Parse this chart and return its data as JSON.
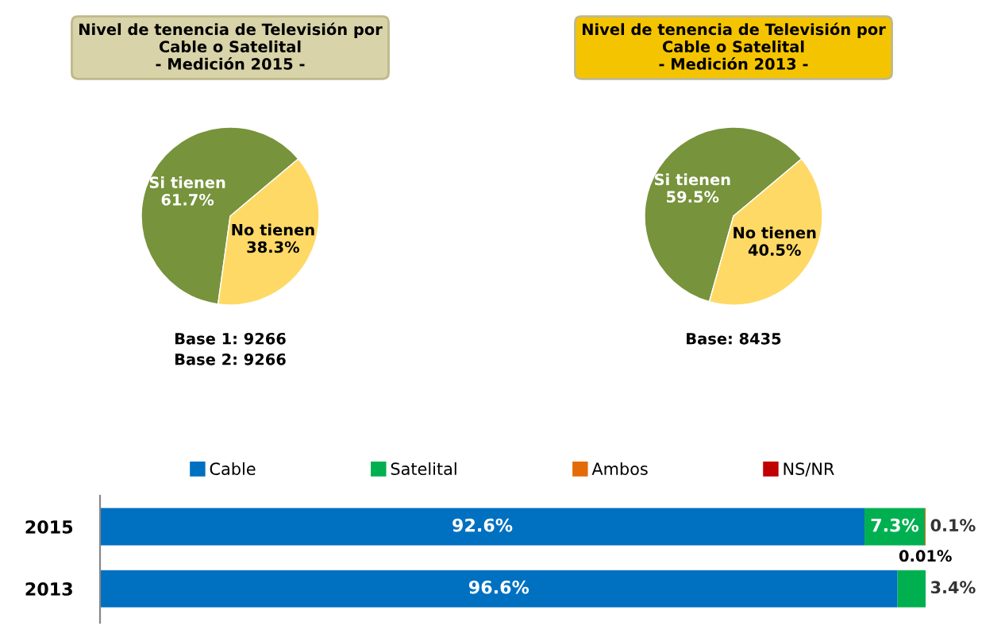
{
  "chart_data": [
    {
      "type": "pie",
      "title": "Nivel de tenencia de Televisión por\nCable o Satelital\n- Medición 2015 -",
      "categories": [
        "Si tienen",
        "No tienen"
      ],
      "values": [
        61.7,
        38.3
      ],
      "value_labels": [
        "61.7%",
        "38.3%"
      ],
      "colors": [
        "#77933c",
        "#ffd966"
      ],
      "annotations": [
        "Base 1: 9266",
        "Base 2: 9266"
      ]
    },
    {
      "type": "pie",
      "title": "Nivel de tenencia de Televisión por\nCable o Satelital\n- Medición 2013 -",
      "categories": [
        "Si tienen",
        "No tienen"
      ],
      "values": [
        59.5,
        40.5
      ],
      "value_labels": [
        "59.5%",
        "40.5%"
      ],
      "colors": [
        "#77933c",
        "#ffd966"
      ],
      "annotations": [
        "Base: 8435"
      ]
    },
    {
      "type": "bar",
      "orientation": "horizontal",
      "stacked": true,
      "categories": [
        "2015",
        "2013"
      ],
      "xlim": [
        0,
        100
      ],
      "tick_labels": "y",
      "legend": "top",
      "data_labels": true,
      "series": [
        {
          "name": "Cable",
          "color": "#0070c0",
          "values": [
            92.6,
            96.6
          ],
          "value_labels": [
            "92.6%",
            "96.6%"
          ]
        },
        {
          "name": "Satelital",
          "color": "#00b050",
          "values": [
            7.3,
            3.4
          ],
          "value_labels": [
            "7.3%",
            "3.4%"
          ]
        },
        {
          "name": "Ambos",
          "color": "#e36c09",
          "values": [
            0.1,
            null
          ],
          "value_labels": [
            "0.1%",
            null
          ]
        },
        {
          "name": "NS/NR",
          "color": "#c00000",
          "values": [
            0.01,
            null
          ],
          "value_labels": [
            "0.01%",
            null
          ]
        }
      ]
    }
  ]
}
